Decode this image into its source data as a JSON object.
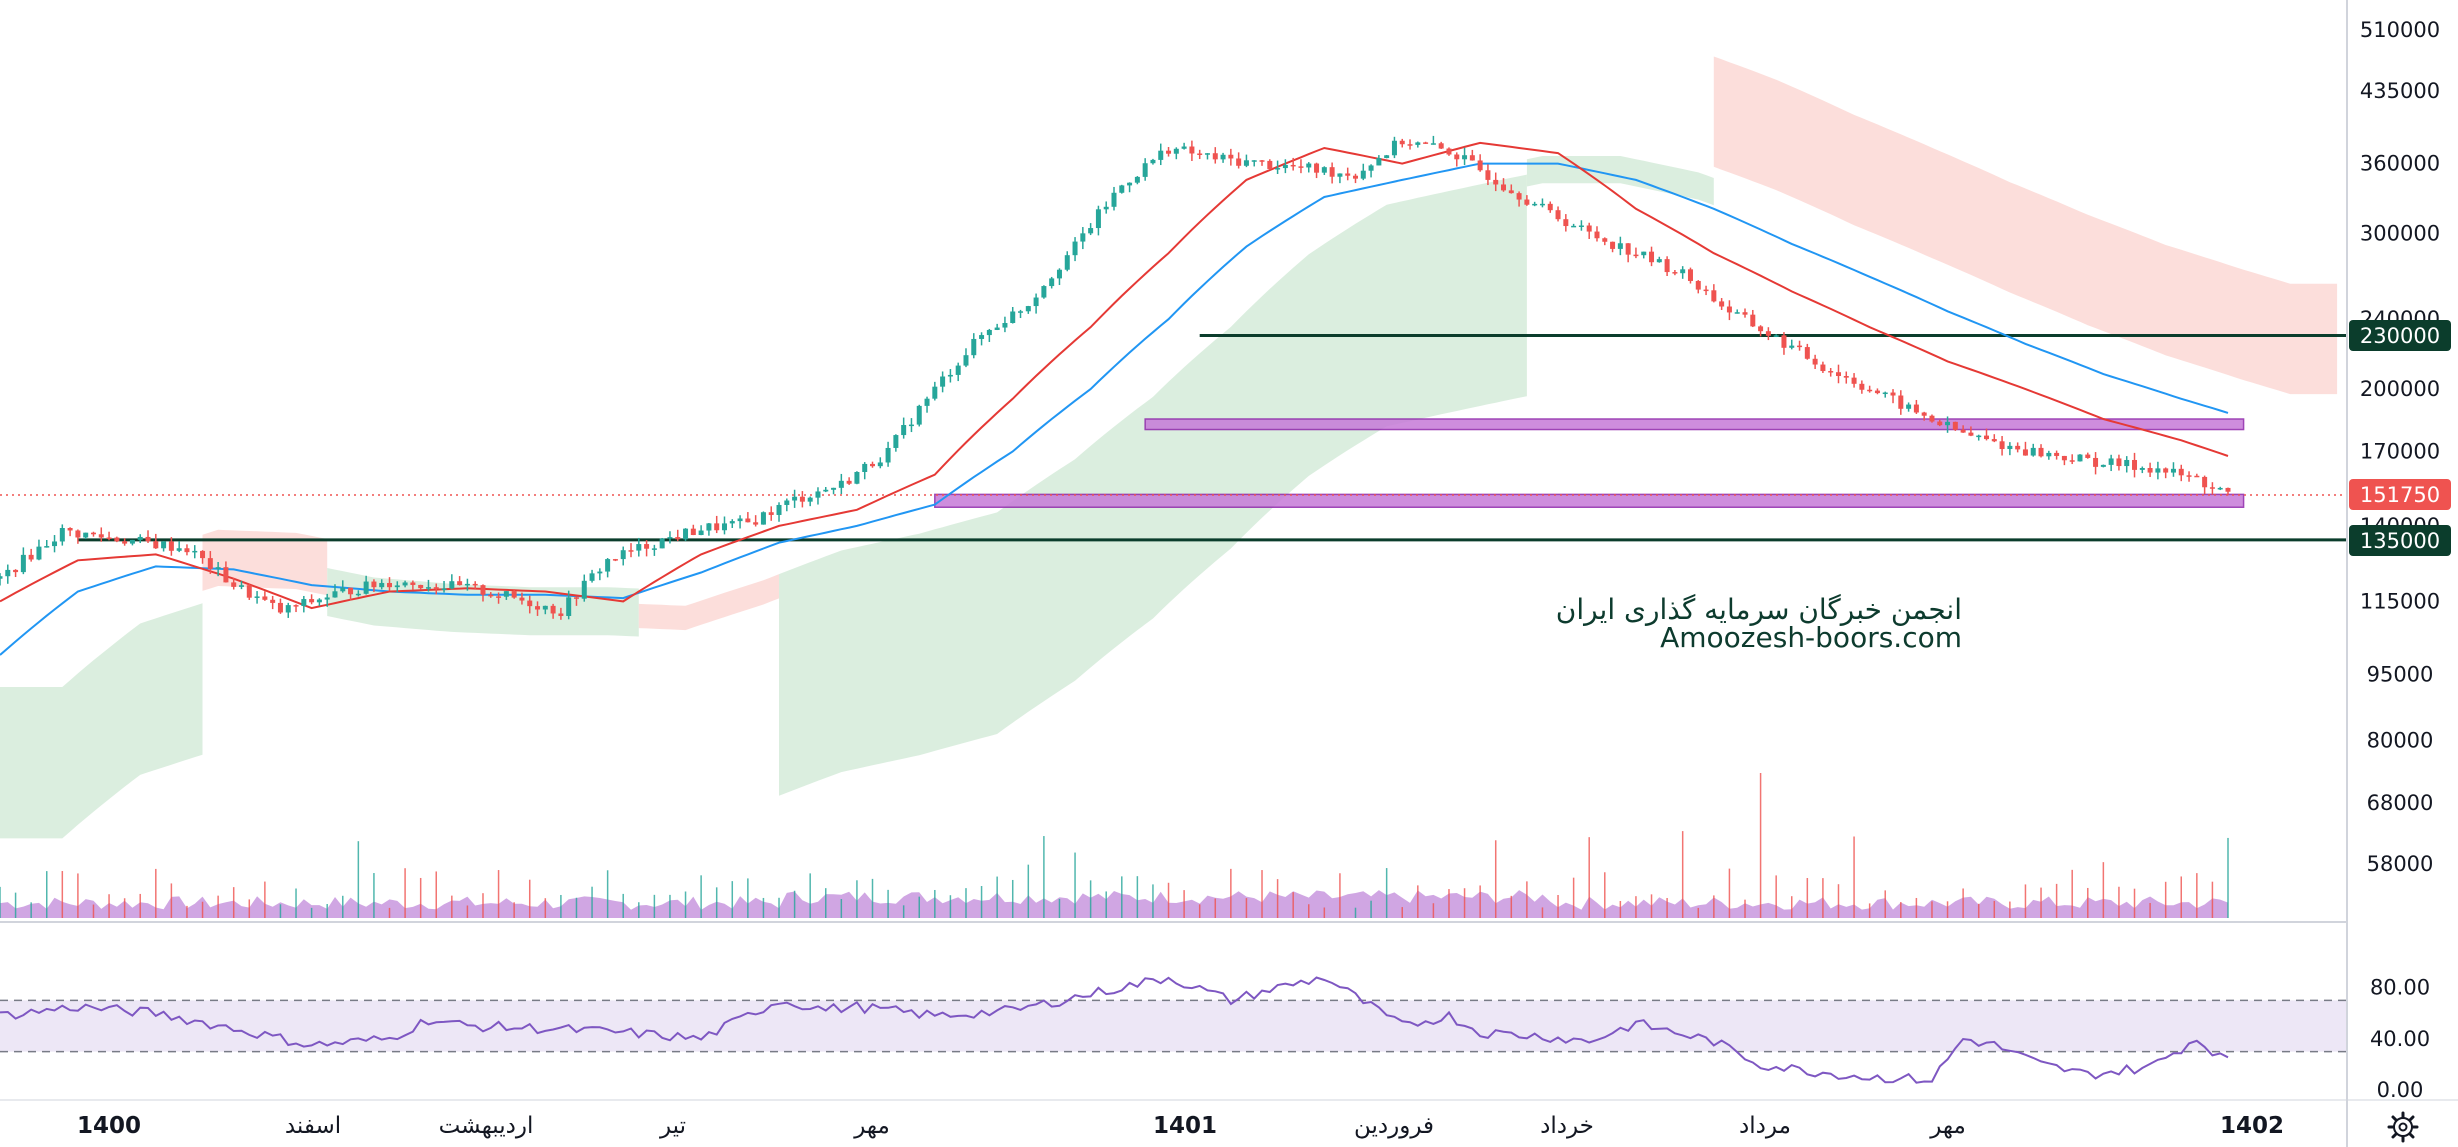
{
  "watermark": {
    "line1": "انجمن خبرگان سرمایه گذاری ایران",
    "line2": "Amoozesh-boors.com"
  },
  "colors": {
    "up": "#26a69a",
    "down": "#ef5350",
    "ema_fast": "#e53935",
    "ema_slow": "#2196f3",
    "cloud_bull": "#cfe8d4",
    "cloud_bear": "#fbd3cf",
    "support": "#0b3d2c",
    "zone_fill": "#c67ad8",
    "zone_stroke": "#8e24aa",
    "volume_area": "#b06bd0",
    "rsi_line": "#7e57c2",
    "rsi_band": "#ede7f6",
    "last_price": "#ef5350"
  },
  "price_axis": {
    "ticks": [
      "510000",
      "435000",
      "360000",
      "300000",
      "240000",
      "200000",
      "170000",
      "140000",
      "115000",
      "95000",
      "80000",
      "68000",
      "58000"
    ]
  },
  "rsi_axis": {
    "ticks": [
      "80.00",
      "40.00",
      "0.00"
    ]
  },
  "time_axis": {
    "labels": [
      {
        "text": "1400",
        "bold": true
      },
      {
        "text": "اسفند",
        "bold": false
      },
      {
        "text": "اردیبهشت",
        "bold": false
      },
      {
        "text": "تیر",
        "bold": false
      },
      {
        "text": "مهر",
        "bold": false
      },
      {
        "text": "1401",
        "bold": true
      },
      {
        "text": "فروردین",
        "bold": false
      },
      {
        "text": "خرداد",
        "bold": false
      },
      {
        "text": "مرداد",
        "bold": false
      },
      {
        "text": "مهر",
        "bold": false
      },
      {
        "text": "1402",
        "bold": true
      }
    ]
  },
  "badges": {
    "resistance": "230000",
    "last_price": "151750",
    "support": "135000"
  },
  "settings_icon": "gear-icon",
  "chart_data": {
    "type": "line",
    "title": "",
    "xlabel": "",
    "ylabel": "",
    "y_scale": "log",
    "ylim": [
      52000,
      560000
    ],
    "last_price": 151750,
    "horizontal_levels": [
      230000,
      135000
    ],
    "zones": [
      [
        152000,
        147000
      ],
      [
        185000,
        180000
      ]
    ],
    "series": [
      {
        "label": "close",
        "x": [
          0,
          8,
          16,
          24,
          30,
          36,
          44,
          50,
          56,
          60,
          66,
          72,
          78,
          84,
          90,
          96,
          102,
          108,
          114,
          120,
          126,
          132,
          138,
          144,
          150,
          156,
          162,
          168,
          174,
          180,
          186,
          192,
          198,
          204,
          210,
          216,
          222,
          228,
          234,
          240,
          246,
          252,
          258,
          264,
          270,
          276,
          282,
          286
        ],
        "values": [
          122000,
          138000,
          135000,
          132000,
          120000,
          112000,
          118000,
          121000,
          120000,
          119000,
          116000,
          112000,
          128000,
          134000,
          139000,
          141000,
          150000,
          156000,
          170000,
          200000,
          230000,
          250000,
          290000,
          340000,
          375000,
          365000,
          360000,
          355000,
          350000,
          382000,
          372000,
          345000,
          320000,
          300000,
          285000,
          270000,
          245000,
          228000,
          212000,
          200000,
          188000,
          178000,
          172000,
          168000,
          165000,
          163000,
          158000,
          151750
        ]
      },
      {
        "label": "ema_fast",
        "x": [
          0,
          10,
          20,
          30,
          40,
          50,
          60,
          70,
          80,
          90,
          100,
          110,
          120,
          130,
          140,
          150,
          160,
          170,
          180,
          190,
          200,
          210,
          220,
          230,
          240,
          250,
          260,
          270,
          280,
          286
        ],
        "values": [
          115000,
          128000,
          130000,
          122000,
          113000,
          118000,
          119000,
          118000,
          115000,
          130000,
          140000,
          146000,
          160000,
          195000,
          235000,
          285000,
          345000,
          375000,
          360000,
          380000,
          370000,
          320000,
          285000,
          258000,
          235000,
          215000,
          200000,
          185000,
          175000,
          168000
        ]
      },
      {
        "label": "ema_slow",
        "x": [
          0,
          10,
          20,
          30,
          40,
          50,
          60,
          70,
          80,
          90,
          100,
          110,
          120,
          130,
          140,
          150,
          160,
          170,
          180,
          190,
          200,
          210,
          220,
          230,
          240,
          250,
          260,
          270,
          280,
          286
        ],
        "values": [
          100000,
          118000,
          126000,
          125000,
          120000,
          118000,
          117000,
          117000,
          116000,
          124000,
          134000,
          140000,
          148000,
          170000,
          200000,
          240000,
          290000,
          330000,
          345000,
          360000,
          360000,
          345000,
          320000,
          292000,
          268000,
          245000,
          225000,
          208000,
          195000,
          188000
        ]
      }
    ],
    "rsi": {
      "ylim": [
        0,
        100
      ],
      "bands": [
        30,
        70
      ],
      "x": [
        0,
        10,
        20,
        30,
        40,
        50,
        55,
        60,
        70,
        80,
        90,
        100,
        106,
        110,
        120,
        130,
        140,
        150,
        158,
        164,
        170,
        180,
        186,
        190,
        198,
        204,
        210,
        220,
        226,
        232,
        240,
        248,
        252,
        256,
        262,
        268,
        276,
        282,
        286
      ],
      "values": [
        58,
        65,
        60,
        48,
        35,
        40,
        55,
        50,
        48,
        45,
        40,
        70,
        63,
        65,
        58,
        62,
        75,
        88,
        70,
        80,
        88,
        50,
        58,
        45,
        42,
        38,
        52,
        38,
        20,
        15,
        10,
        8,
        40,
        35,
        20,
        12,
        18,
        40,
        22
      ]
    }
  }
}
